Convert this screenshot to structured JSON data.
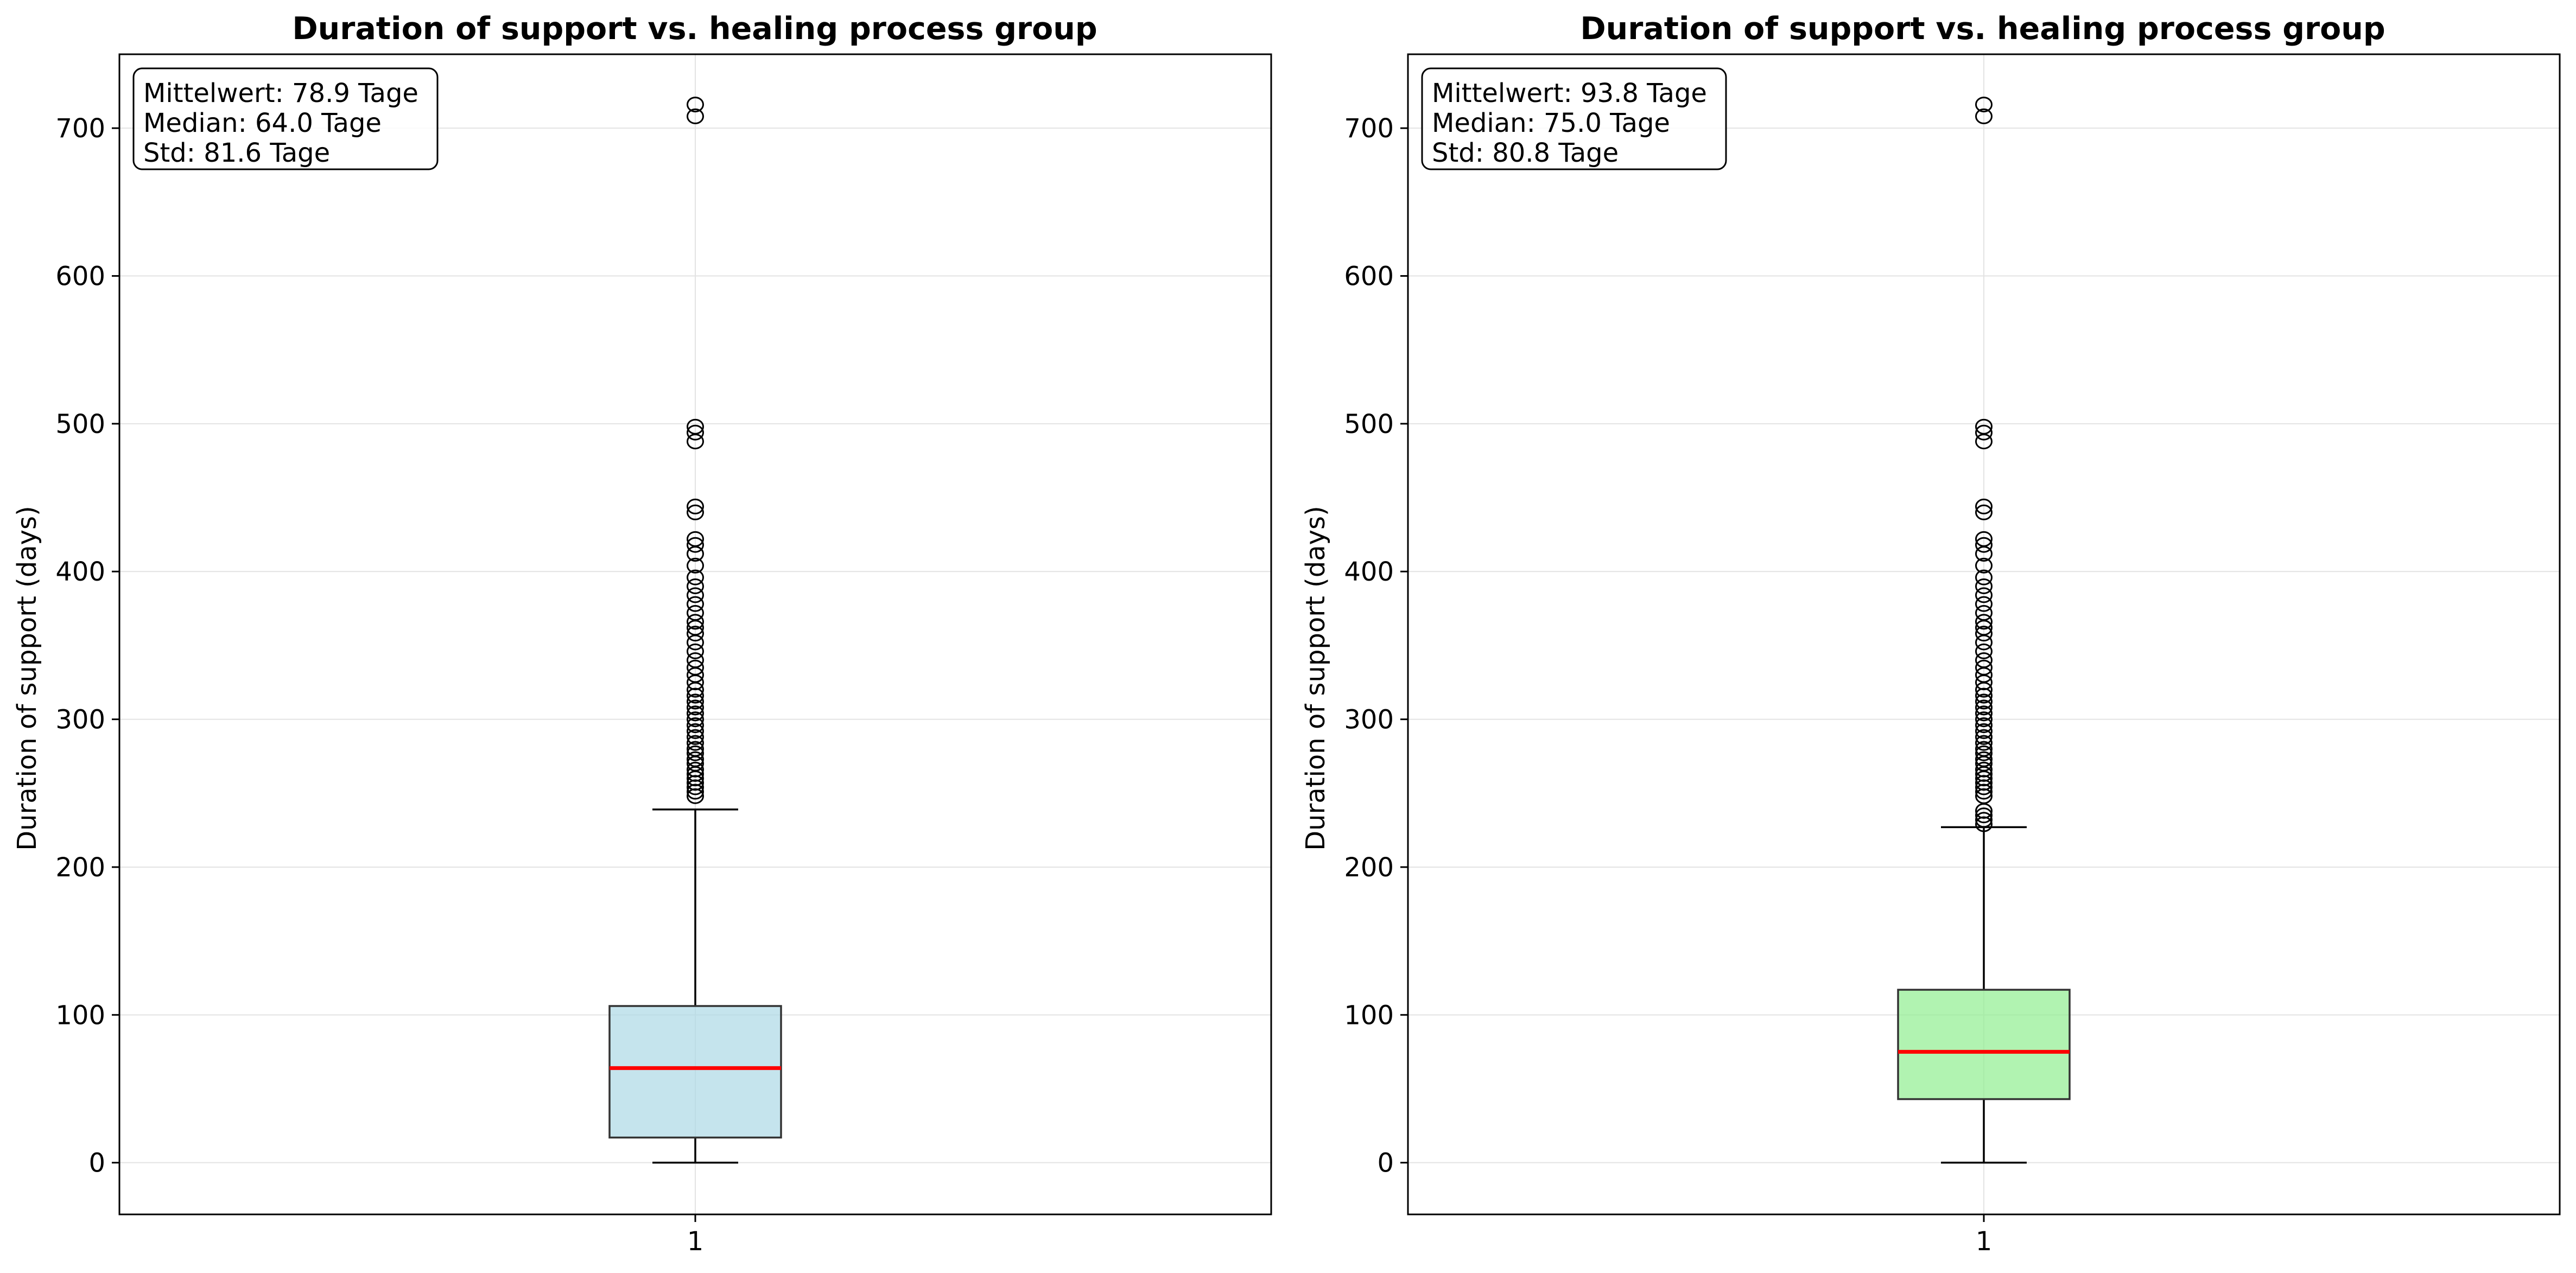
{
  "chart_data": [
    {
      "type": "box",
      "title": "Duration of support vs. healing process group",
      "xlabel": "",
      "ylabel": "Duration of support (days)",
      "ylim": [
        -35,
        750
      ],
      "yticks": [
        0,
        100,
        200,
        300,
        400,
        500,
        600,
        700
      ],
      "categories": [
        "1"
      ],
      "grid": true,
      "box": {
        "whisker_low": 0,
        "q1": 17,
        "median": 64,
        "q3": 106,
        "whisker_high": 239,
        "fill_color": "#add8e6",
        "median_color": "#ff0000"
      },
      "outliers": [
        248,
        251,
        254,
        257,
        260,
        263,
        266,
        270,
        273,
        277,
        280,
        284,
        288,
        292,
        296,
        300,
        304,
        308,
        312,
        316,
        320,
        325,
        330,
        335,
        340,
        346,
        352,
        358,
        362,
        366,
        372,
        378,
        384,
        390,
        396,
        404,
        412,
        418,
        422,
        440,
        444,
        488,
        494,
        498,
        708,
        716
      ],
      "stats": [
        "Mittelwert: 78.9 Tage",
        "Median: 64.0 Tage",
        "Std: 81.6 Tage"
      ]
    },
    {
      "type": "box",
      "title": "Duration of support vs. healing process group",
      "xlabel": "",
      "ylabel": "Duration of support (days)",
      "ylim": [
        -35,
        750
      ],
      "yticks": [
        0,
        100,
        200,
        300,
        400,
        500,
        600,
        700
      ],
      "categories": [
        "1"
      ],
      "grid": true,
      "box": {
        "whisker_low": 0,
        "q1": 43,
        "median": 75,
        "q3": 117,
        "whisker_high": 227,
        "fill_color": "#90ee90",
        "median_color": "#ff0000"
      },
      "outliers": [
        229,
        232,
        235,
        238,
        248,
        251,
        254,
        257,
        260,
        263,
        266,
        270,
        273,
        277,
        280,
        284,
        288,
        292,
        296,
        300,
        304,
        308,
        312,
        316,
        320,
        325,
        330,
        335,
        340,
        346,
        352,
        358,
        362,
        366,
        372,
        378,
        384,
        390,
        396,
        404,
        412,
        418,
        422,
        440,
        444,
        488,
        494,
        498,
        708,
        716
      ],
      "stats": [
        "Mittelwert: 93.8 Tage",
        "Median: 75.0 Tage",
        "Std: 80.8 Tage"
      ]
    }
  ]
}
